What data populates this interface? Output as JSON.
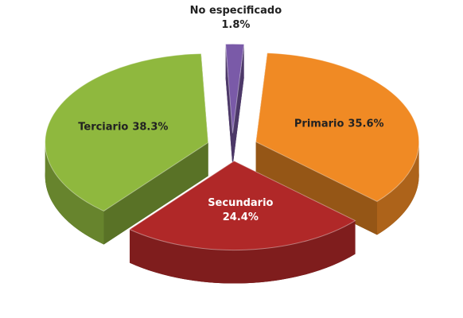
{
  "chart_data": {
    "type": "pie",
    "categories": [
      "Primario",
      "Secundario",
      "Terciario",
      "No especificado"
    ],
    "values": [
      35.6,
      24.4,
      38.3,
      1.8
    ],
    "value_labels": [
      "35.6%",
      "24.4%",
      "38.3%",
      "1.8%"
    ],
    "colors": [
      "#f08a24",
      "#b02828",
      "#8fb83e",
      "#7a5aa8"
    ]
  }
}
